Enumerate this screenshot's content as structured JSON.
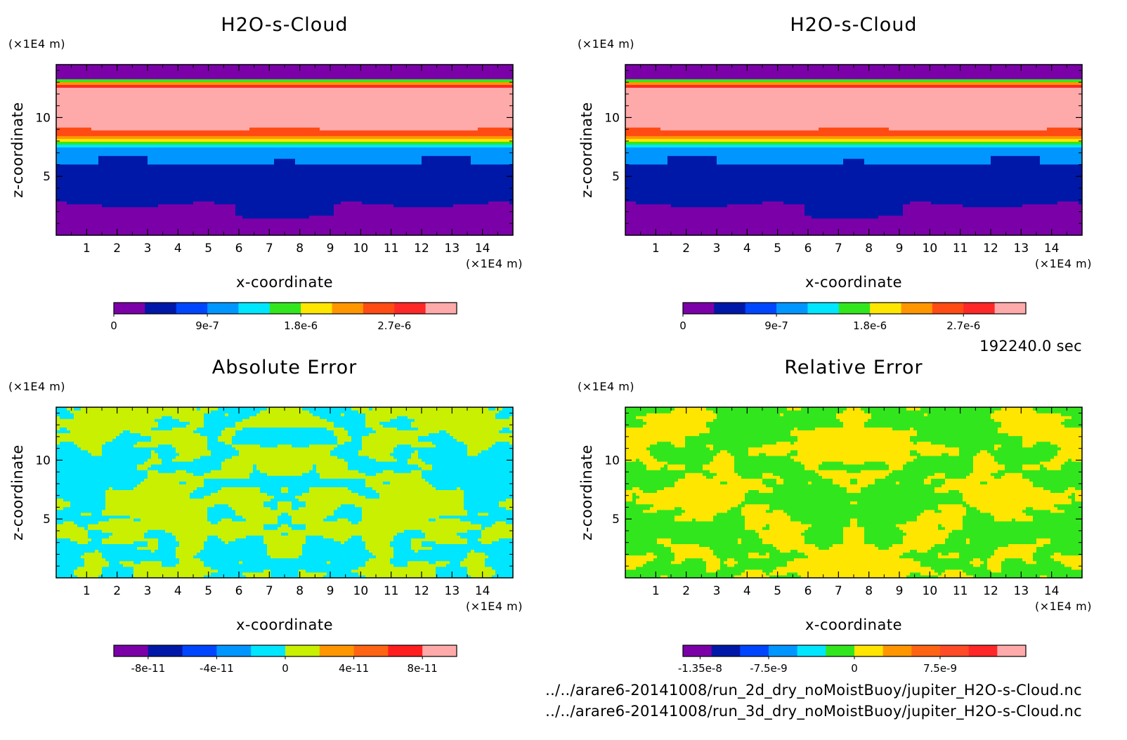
{
  "chart_data": [
    {
      "type": "heatmap",
      "title": "H2O-s-Cloud",
      "xlabel": "x-coordinate",
      "ylabel": "z-coordinate",
      "x_unit": "(×1E4 m)",
      "y_unit": "(×1E4 m)",
      "xlim": [
        0,
        15
      ],
      "ylim": [
        0,
        14.5
      ],
      "xticks": [
        1,
        2,
        3,
        4,
        5,
        6,
        7,
        8,
        9,
        10,
        11,
        12,
        13,
        14
      ],
      "yticks": [
        5,
        10
      ],
      "pattern": "layers",
      "colorbar": {
        "range": [
          0,
          3.3e-06
        ],
        "colors": [
          "#7b00a8",
          "#0018a8",
          "#0046ff",
          "#0096ff",
          "#00e6ff",
          "#32e61e",
          "#ffe600",
          "#ff9600",
          "#ff4b14",
          "#ff2828",
          "#ffaaaa"
        ],
        "ticks": [
          {
            "value": 0,
            "label": "0"
          },
          {
            "value": 9e-07,
            "label": "9e-7"
          },
          {
            "value": 1.8e-06,
            "label": "1.8e-6"
          },
          {
            "value": 2.7e-06,
            "label": "2.7e-6"
          }
        ]
      }
    },
    {
      "type": "heatmap",
      "title": "H2O-s-Cloud",
      "xlabel": "x-coordinate",
      "ylabel": "z-coordinate",
      "x_unit": "(×1E4 m)",
      "y_unit": "(×1E4 m)",
      "xlim": [
        0,
        15
      ],
      "ylim": [
        0,
        14.5
      ],
      "xticks": [
        1,
        2,
        3,
        4,
        5,
        6,
        7,
        8,
        9,
        10,
        11,
        12,
        13,
        14
      ],
      "yticks": [
        5,
        10
      ],
      "pattern": "layers",
      "colorbar": {
        "range": [
          0,
          3.3e-06
        ],
        "colors": [
          "#7b00a8",
          "#0018a8",
          "#0046ff",
          "#0096ff",
          "#00e6ff",
          "#32e61e",
          "#ffe600",
          "#ff9600",
          "#ff4b14",
          "#ff2828",
          "#ffaaaa"
        ],
        "ticks": [
          {
            "value": 0,
            "label": "0"
          },
          {
            "value": 9e-07,
            "label": "9e-7"
          },
          {
            "value": 1.8e-06,
            "label": "1.8e-6"
          },
          {
            "value": 2.7e-06,
            "label": "2.7e-6"
          }
        ]
      }
    },
    {
      "type": "heatmap",
      "title": "Absolute Error",
      "xlabel": "x-coordinate",
      "ylabel": "z-coordinate",
      "x_unit": "(×1E4 m)",
      "y_unit": "(×1E4 m)",
      "xlim": [
        0,
        15
      ],
      "ylim": [
        0,
        14.5
      ],
      "xticks": [
        1,
        2,
        3,
        4,
        5,
        6,
        7,
        8,
        9,
        10,
        11,
        12,
        13,
        14
      ],
      "yticks": [
        5,
        10
      ],
      "pattern": "noise",
      "field_colors": [
        "#00e6ff",
        "#c8f000"
      ],
      "colorbar": {
        "range": [
          -1e-10,
          1e-10
        ],
        "colors": [
          "#7b00a8",
          "#0018a8",
          "#0046ff",
          "#0096ff",
          "#00e6ff",
          "#c8f000",
          "#ff9600",
          "#ff6414",
          "#ff1e1e",
          "#ffaaaa"
        ],
        "ticks": [
          {
            "value": -8e-11,
            "label": "-8e-11"
          },
          {
            "value": -4e-11,
            "label": "-4e-11"
          },
          {
            "value": 0,
            "label": "0"
          },
          {
            "value": 4e-11,
            "label": "4e-11"
          },
          {
            "value": 8e-11,
            "label": "8e-11"
          }
        ]
      }
    },
    {
      "type": "heatmap",
      "title": "Relative Error",
      "xlabel": "x-coordinate",
      "ylabel": "z-coordinate",
      "x_unit": "(×1E4 m)",
      "y_unit": "(×1E4 m)",
      "xlim": [
        0,
        15
      ],
      "ylim": [
        0,
        14.5
      ],
      "xticks": [
        1,
        2,
        3,
        4,
        5,
        6,
        7,
        8,
        9,
        10,
        11,
        12,
        13,
        14
      ],
      "yticks": [
        5,
        10
      ],
      "pattern": "noise",
      "field_colors": [
        "#32e61e",
        "#ffe600"
      ],
      "colorbar": {
        "range": [
          -1.5e-08,
          1.5e-08
        ],
        "colors": [
          "#7b00a8",
          "#0018a8",
          "#0046ff",
          "#0096ff",
          "#00e6ff",
          "#32e61e",
          "#ffe600",
          "#ff9600",
          "#ff6414",
          "#ff4b28",
          "#ff2828",
          "#ffaaaa"
        ],
        "ticks": [
          {
            "value": -1.35e-08,
            "label": "-1.35e-8"
          },
          {
            "value": -7.5e-09,
            "label": "-7.5e-9"
          },
          {
            "value": 0,
            "label": "0"
          },
          {
            "value": 7.5e-09,
            "label": "7.5e-9"
          }
        ]
      }
    }
  ],
  "time_label": "192240.0 sec",
  "footer_lines": [
    "../../arare6-20141008/run_2d_dry_noMoistBuoy/jupiter_H2O-s-Cloud.nc",
    "../../arare6-20141008/run_3d_dry_noMoistBuoy/jupiter_H2O-s-Cloud.nc"
  ]
}
